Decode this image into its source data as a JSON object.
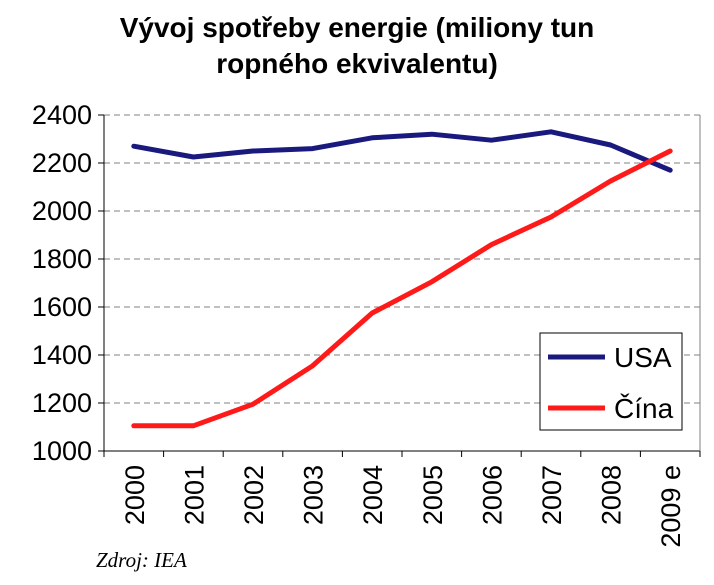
{
  "chart_data": {
    "type": "line",
    "title_line1": "Vývoj spotřeby energie (miliony tun",
    "title_line2": "ropného ekvivalentu)",
    "categories": [
      "2000",
      "2001",
      "2002",
      "2003",
      "2004",
      "2005",
      "2006",
      "2007",
      "2008",
      "2009 e"
    ],
    "series": [
      {
        "name": "USA",
        "color": "#1a1a7e",
        "values": [
          2270,
          2225,
          2250,
          2260,
          2305,
          2320,
          2295,
          2330,
          2275,
          2170
        ]
      },
      {
        "name": "Čína",
        "color": "#ff1a1a",
        "values": [
          1105,
          1105,
          1195,
          1355,
          1575,
          1705,
          1860,
          1975,
          2125,
          2250
        ]
      }
    ],
    "ylim": [
      1000,
      2400
    ],
    "yticks": [
      "1000",
      "1200",
      "1400",
      "1600",
      "1800",
      "2000",
      "2200",
      "2400"
    ],
    "grid": true,
    "legend_position": "bottom-right",
    "source": "Zdroj: IEA"
  }
}
